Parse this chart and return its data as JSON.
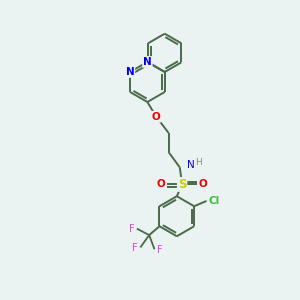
{
  "background_color": "#eaf2f2",
  "bond_color": "#4a6a4a",
  "atom_colors": {
    "N": "#0000ee",
    "O": "#ee0000",
    "S": "#cccc00",
    "Cl": "#44bb44",
    "F": "#dd44dd",
    "C": "#4a6a4a",
    "H": "#888888",
    "NH": "#888888"
  },
  "figsize": [
    3.0,
    3.0
  ],
  "dpi": 100
}
